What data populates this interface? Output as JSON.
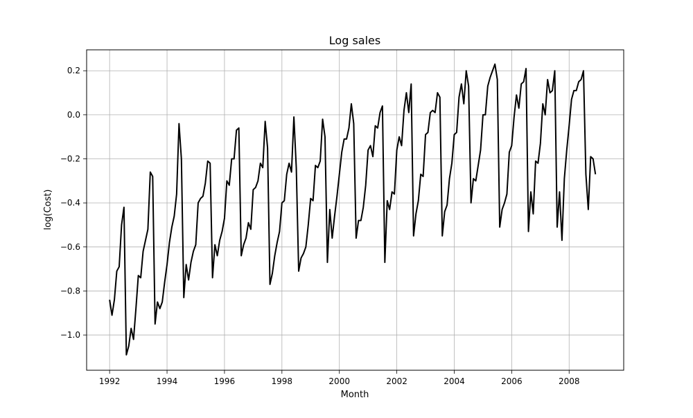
{
  "chart_data": {
    "type": "line",
    "title": "Log sales",
    "xlabel": "Month",
    "ylabel": "log(Cost)",
    "xlim": [
      1991.2,
      2009.9
    ],
    "ylim": [
      -1.16,
      0.295
    ],
    "grid": true,
    "x_ticks": [
      {
        "value": 1992,
        "label": "1992"
      },
      {
        "value": 1994,
        "label": "1994"
      },
      {
        "value": 1996,
        "label": "1996"
      },
      {
        "value": 1998,
        "label": "1998"
      },
      {
        "value": 2000,
        "label": "2000"
      },
      {
        "value": 2002,
        "label": "2002"
      },
      {
        "value": 2004,
        "label": "2004"
      },
      {
        "value": 2006,
        "label": "2006"
      },
      {
        "value": 2008,
        "label": "2008"
      }
    ],
    "y_ticks": [
      {
        "value": -1.0,
        "label": "−1.0"
      },
      {
        "value": -0.8,
        "label": "−0.8"
      },
      {
        "value": -0.6,
        "label": "−0.6"
      },
      {
        "value": -0.4,
        "label": "−0.4"
      },
      {
        "value": -0.2,
        "label": "−0.2"
      },
      {
        "value": 0.0,
        "label": "0.0"
      },
      {
        "value": 0.2,
        "label": "0.2"
      }
    ],
    "series": [
      {
        "color": "#000000",
        "x_start": "1992-01",
        "frequency": "monthly",
        "values": [
          -0.84,
          -0.91,
          -0.84,
          -0.71,
          -0.69,
          -0.5,
          -0.42,
          -1.09,
          -1.05,
          -0.97,
          -1.02,
          -0.88,
          -0.73,
          -0.74,
          -0.62,
          -0.57,
          -0.52,
          -0.26,
          -0.28,
          -0.95,
          -0.85,
          -0.88,
          -0.85,
          -0.76,
          -0.68,
          -0.58,
          -0.51,
          -0.46,
          -0.36,
          -0.04,
          -0.2,
          -0.83,
          -0.68,
          -0.75,
          -0.67,
          -0.62,
          -0.59,
          -0.4,
          -0.38,
          -0.37,
          -0.31,
          -0.21,
          -0.22,
          -0.74,
          -0.59,
          -0.64,
          -0.57,
          -0.53,
          -0.47,
          -0.3,
          -0.32,
          -0.2,
          -0.2,
          -0.07,
          -0.06,
          -0.64,
          -0.59,
          -0.56,
          -0.49,
          -0.52,
          -0.34,
          -0.33,
          -0.3,
          -0.22,
          -0.24,
          -0.03,
          -0.15,
          -0.77,
          -0.72,
          -0.64,
          -0.58,
          -0.53,
          -0.4,
          -0.39,
          -0.27,
          -0.22,
          -0.26,
          -0.01,
          -0.24,
          -0.71,
          -0.65,
          -0.63,
          -0.6,
          -0.5,
          -0.38,
          -0.39,
          -0.23,
          -0.24,
          -0.21,
          -0.02,
          -0.1,
          -0.67,
          -0.43,
          -0.56,
          -0.46,
          -0.37,
          -0.27,
          -0.17,
          -0.11,
          -0.11,
          -0.06,
          0.05,
          -0.04,
          -0.56,
          -0.48,
          -0.48,
          -0.42,
          -0.32,
          -0.16,
          -0.14,
          -0.19,
          -0.05,
          -0.06,
          0.01,
          0.04,
          -0.67,
          -0.39,
          -0.43,
          -0.35,
          -0.36,
          -0.16,
          -0.1,
          -0.14,
          0.02,
          0.1,
          0.01,
          0.14,
          -0.55,
          -0.45,
          -0.39,
          -0.27,
          -0.28,
          -0.09,
          -0.08,
          0.01,
          0.02,
          0.01,
          0.1,
          0.08,
          -0.55,
          -0.44,
          -0.41,
          -0.29,
          -0.22,
          -0.09,
          -0.08,
          0.08,
          0.14,
          0.05,
          0.2,
          0.13,
          -0.4,
          -0.29,
          -0.3,
          -0.23,
          -0.16,
          0.0,
          0.0,
          0.13,
          0.17,
          0.2,
          0.23,
          0.16,
          -0.51,
          -0.43,
          -0.4,
          -0.36,
          -0.17,
          -0.14,
          -0.01,
          0.09,
          0.03,
          0.14,
          0.15,
          0.21,
          -0.53,
          -0.35,
          -0.45,
          -0.21,
          -0.22,
          -0.13,
          0.05,
          0.0,
          0.16,
          0.1,
          0.11,
          0.2,
          -0.51,
          -0.35,
          -0.57,
          -0.29,
          -0.16,
          -0.05,
          0.07,
          0.11,
          0.11,
          0.15,
          0.16,
          0.2,
          -0.27,
          -0.43,
          -0.19,
          -0.2,
          -0.27
        ]
      }
    ]
  }
}
